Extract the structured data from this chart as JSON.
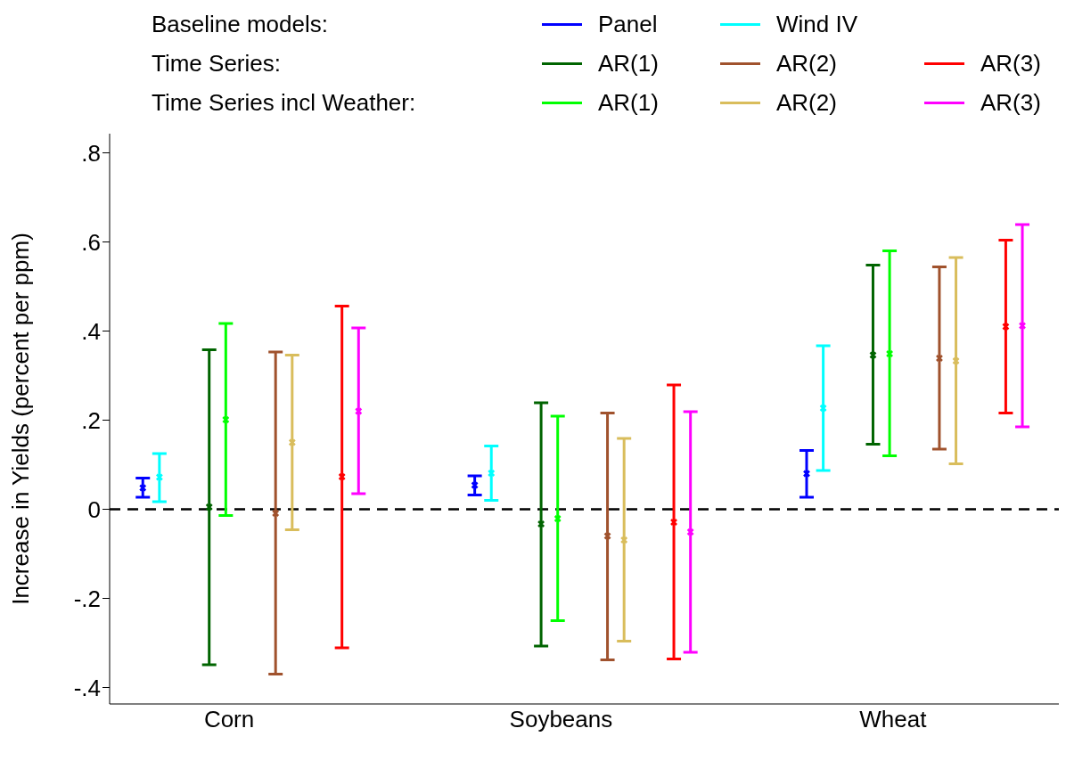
{
  "chart_data": {
    "type": "scatter",
    "ylabel": "Increase in Yields (percent per ppm)",
    "categories": [
      "Corn",
      "Soybeans",
      "Wheat"
    ],
    "annotations": [
      "Baseline models:",
      "Time Series:",
      "Time Series incl Weather:"
    ],
    "series": [
      {
        "name": "Panel",
        "color": "#0000ff",
        "values": [
          0.048,
          0.054,
          0.08
        ],
        "errors": [
          [
            0.027,
            0.07
          ],
          [
            0.032,
            0.075
          ],
          [
            0.027,
            0.132
          ]
        ]
      },
      {
        "name": "Wind IV",
        "color": "#00ffff",
        "values": [
          0.072,
          0.081,
          0.227
        ],
        "errors": [
          [
            0.017,
            0.125
          ],
          [
            0.02,
            0.142
          ],
          [
            0.087,
            0.367
          ]
        ]
      },
      {
        "name": "AR(1)",
        "color": "#006400",
        "values": [
          0.005,
          -0.033,
          0.346
        ],
        "errors": [
          [
            -0.349,
            0.358
          ],
          [
            -0.307,
            0.239
          ],
          [
            0.146,
            0.548
          ]
        ]
      },
      {
        "name": "AR(1)",
        "color": "#00ff00",
        "values": [
          0.201,
          -0.021,
          0.349
        ],
        "errors": [
          [
            -0.014,
            0.417
          ],
          [
            -0.25,
            0.209
          ],
          [
            0.12,
            0.58
          ]
        ]
      },
      {
        "name": "AR(2)",
        "color": "#a0522d",
        "values": [
          -0.009,
          -0.06,
          0.339
        ],
        "errors": [
          [
            -0.37,
            0.353
          ],
          [
            -0.338,
            0.216
          ],
          [
            0.135,
            0.544
          ]
        ]
      },
      {
        "name": "AR(2)",
        "color": "#d9bd5c",
        "values": [
          0.15,
          -0.069,
          0.333
        ],
        "errors": [
          [
            -0.046,
            0.346
          ],
          [
            -0.296,
            0.159
          ],
          [
            0.102,
            0.565
          ]
        ]
      },
      {
        "name": "AR(3)",
        "color": "#ff0000",
        "values": [
          0.073,
          -0.029,
          0.41
        ],
        "errors": [
          [
            -0.311,
            0.456
          ],
          [
            -0.336,
            0.279
          ],
          [
            0.216,
            0.604
          ]
        ]
      },
      {
        "name": "AR(3)",
        "color": "#ff00ff",
        "values": [
          0.22,
          -0.051,
          0.412
        ],
        "errors": [
          [
            0.035,
            0.407
          ],
          [
            -0.321,
            0.219
          ],
          [
            0.185,
            0.639
          ]
        ]
      }
    ],
    "ylim": [
      -0.437,
      0.843
    ],
    "yticks": [
      {
        "value": -0.4,
        "label": "-.4"
      },
      {
        "value": -0.2,
        "label": "-.2"
      },
      0,
      {
        "value": 0.2,
        "label": ".2"
      },
      {
        "value": 0.4,
        "label": ".4"
      },
      {
        "value": 0.6,
        "label": ".6"
      },
      {
        "value": 0.8,
        "label": ".8"
      }
    ],
    "ref_lines": [
      {
        "axis": "y",
        "value": 0,
        "color": "#000000",
        "line_style": "dashed"
      }
    ],
    "marker": "cross",
    "grid": false,
    "legend": "top"
  }
}
